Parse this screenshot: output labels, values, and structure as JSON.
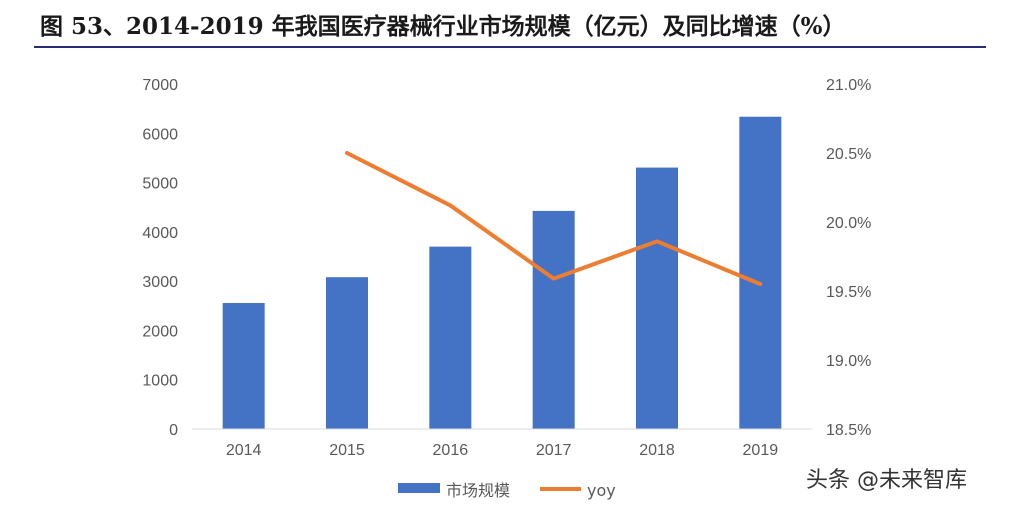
{
  "title": "图 53、2014-2019 年我国医疗器械行业市场规模（亿元）及同比增速（%）",
  "watermark": "头条 @未来智库",
  "chart_data": {
    "type": "bar+line",
    "categories": [
      "2014",
      "2015",
      "2016",
      "2017",
      "2018",
      "2019"
    ],
    "series": [
      {
        "name": "市场规模",
        "type": "bar",
        "axis": "left",
        "color": "#4472C4",
        "values": [
          2556,
          3080,
          3700,
          4425,
          5304,
          6336
        ]
      },
      {
        "name": "yoy",
        "type": "line",
        "axis": "right",
        "color": "#ED7D31",
        "values": [
          null,
          20.5,
          20.12,
          19.59,
          19.86,
          19.55
        ]
      }
    ],
    "y_left": {
      "ylim": [
        0,
        7000
      ],
      "ticks": [
        0,
        1000,
        2000,
        3000,
        4000,
        5000,
        6000,
        7000
      ]
    },
    "y_right": {
      "ylim": [
        18.5,
        21.0
      ],
      "ticks": [
        18.5,
        19.0,
        19.5,
        20.0,
        20.5,
        21.0
      ],
      "tick_labels": [
        "18.5%",
        "19.0%",
        "19.5%",
        "20.0%",
        "20.5%",
        "21.0%"
      ]
    },
    "grid": false,
    "legend_position": "bottom"
  }
}
